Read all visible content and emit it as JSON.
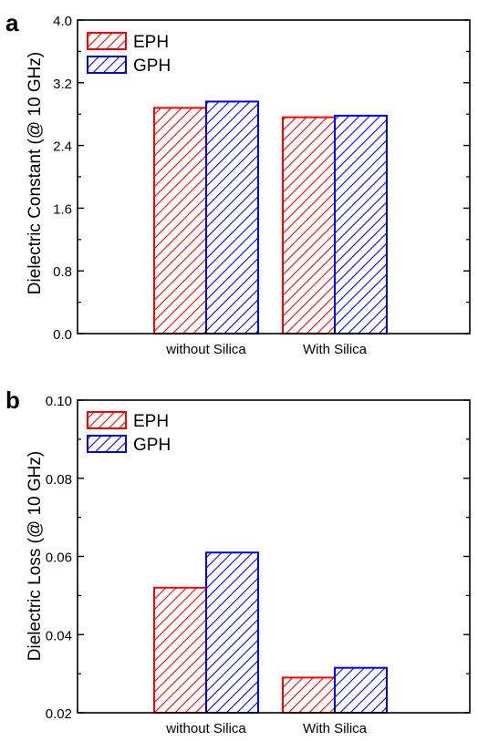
{
  "colors": {
    "eph": "#ff0000",
    "gph": "#0000ff",
    "axis": "#000000"
  },
  "chart_data": [
    {
      "panel_label": "a",
      "type": "bar",
      "categories": [
        "without Silica",
        "With Silica"
      ],
      "series": [
        {
          "name": "EPH",
          "values": [
            2.88,
            2.76
          ]
        },
        {
          "name": "GPH",
          "values": [
            2.96,
            2.78
          ]
        }
      ],
      "title": "",
      "xlabel": "",
      "ylabel": "Dielectric Constant (@ 10 GHz)",
      "ylim": [
        0.0,
        4.0
      ],
      "yticks": [
        0.0,
        0.8,
        1.6,
        2.4,
        3.2,
        4.0
      ],
      "ytick_labels": [
        "0.0",
        "0.8",
        "1.6",
        "2.4",
        "3.2",
        "4.0"
      ],
      "legend": "top-left",
      "grid": false,
      "pattern": "diagonal-hatch"
    },
    {
      "panel_label": "b",
      "type": "bar",
      "categories": [
        "without Silica",
        "With Silica"
      ],
      "series": [
        {
          "name": "EPH",
          "values": [
            0.052,
            0.029
          ]
        },
        {
          "name": "GPH",
          "values": [
            0.061,
            0.0315
          ]
        }
      ],
      "title": "",
      "xlabel": "",
      "ylabel": "Dielectric Loss (@ 10 GHz)",
      "ylim": [
        0.02,
        0.1
      ],
      "yticks": [
        0.02,
        0.04,
        0.06,
        0.08,
        0.1
      ],
      "ytick_labels": [
        "0.02",
        "0.04",
        "0.06",
        "0.08",
        "0.10"
      ],
      "legend": "top-left",
      "grid": false,
      "pattern": "diagonal-hatch"
    }
  ]
}
